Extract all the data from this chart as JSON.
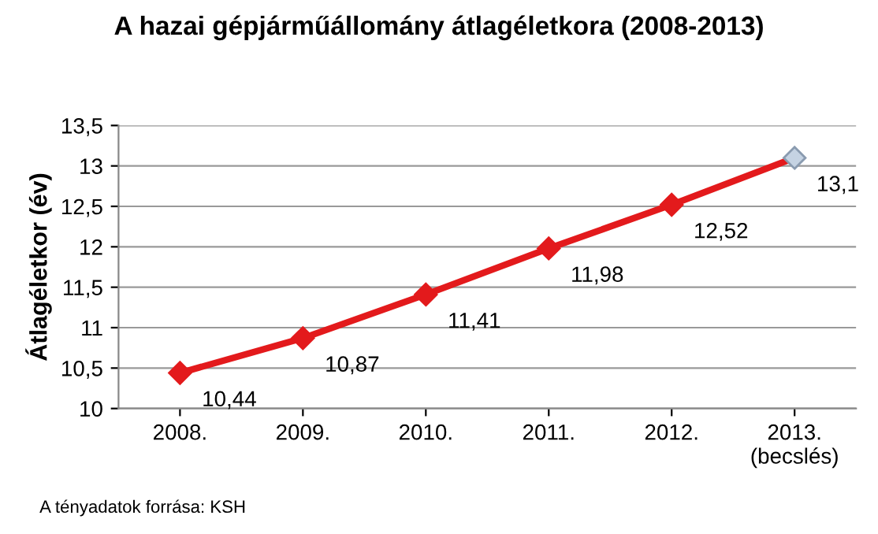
{
  "chart_data": {
    "type": "line",
    "title": "A hazai gépjárműállomány átlagéletkora (2008-2013)",
    "ylabel": "Átlagéletkor (év)",
    "categories": [
      "2008.",
      "2009.",
      "2010.",
      "2011.",
      "2012.",
      "2013.\n(becslés)"
    ],
    "series": [
      {
        "color": "#e31a1c",
        "colors": [
          "#e31a1c",
          "#e31a1c",
          "#e31a1c",
          "#e31a1c",
          "#e31a1c",
          "#c5d3e3"
        ],
        "values": [
          10.44,
          10.87,
          11.41,
          11.98,
          12.52,
          13.1
        ],
        "value_labels": [
          "10,44",
          "10,87",
          "11,41",
          "11,98",
          "12,52",
          "13,1"
        ]
      }
    ],
    "ylim": [
      10,
      13.5
    ],
    "yticks": [
      {
        "value": 10,
        "label": "10"
      },
      {
        "value": 10.5,
        "label": "10,5"
      },
      {
        "value": 11,
        "label": "11"
      },
      {
        "value": 11.5,
        "label": "11,5"
      },
      {
        "value": 12,
        "label": "12"
      },
      {
        "value": 12.5,
        "label": "12,5"
      },
      {
        "value": 13,
        "label": "13"
      },
      {
        "value": 13.5,
        "label": "13,5"
      }
    ],
    "grid": "y",
    "marker": "diamond",
    "line_style": "solid",
    "legend": false,
    "annotations": [
      "A tényadatok forrása: KSH"
    ]
  }
}
